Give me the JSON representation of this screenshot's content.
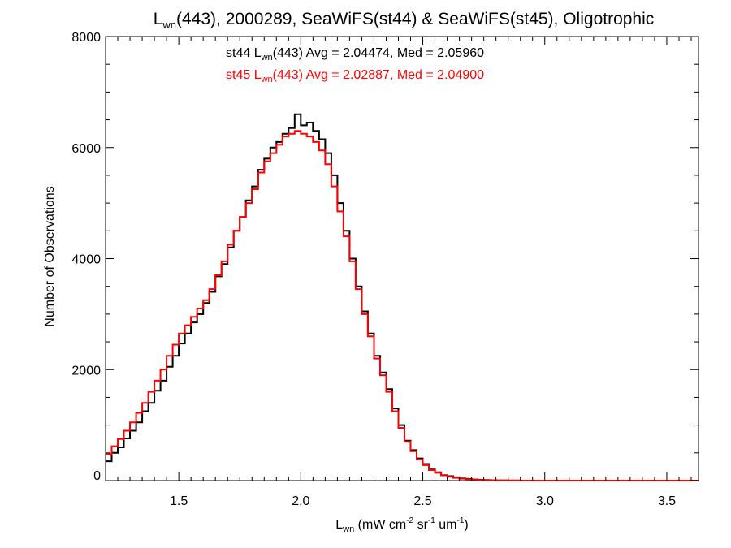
{
  "chart_data": {
    "type": "line",
    "title": {
      "main": "L",
      "sub": "wn",
      "rest": "(443), 2000289, SeaWiFS(st44) & SeaWiFS(st45), Oligotrophic"
    },
    "xlabel": {
      "main": "L",
      "sub": "wn",
      "units_pre": " (mW cm",
      "sup1": "-2",
      "units_mid": " sr",
      "sup2": "-1",
      "units_mid2": " um",
      "sup3": "-1",
      "units_post": ")"
    },
    "ylabel": "Number of Observations",
    "xlim": [
      1.2,
      3.63
    ],
    "ylim": [
      0,
      8000
    ],
    "xticks": [
      1.5,
      2.0,
      2.5,
      3.0,
      3.5
    ],
    "xtick_labels": [
      "1.5",
      "2.0",
      "2.5",
      "3.0",
      "3.5"
    ],
    "yticks": [
      0,
      2000,
      4000,
      6000,
      8000
    ],
    "ytick_labels": [
      "0",
      "2000",
      "4000",
      "6000",
      "8000"
    ],
    "grid": false,
    "annotations": [
      {
        "prefix": "st44 L",
        "sub": "wn",
        "suffix": "(443) Avg = 2.04474, Med = 2.05960",
        "color": "#000000"
      },
      {
        "prefix": "st45 L",
        "sub": "wn",
        "suffix": "(443) Avg = 2.02887, Med = 2.04900",
        "color": "#ff0000"
      }
    ],
    "series": [
      {
        "color": "#000000",
        "step": "histogram",
        "x": [
          1.2,
          1.225,
          1.25,
          1.275,
          1.3,
          1.325,
          1.35,
          1.375,
          1.4,
          1.425,
          1.45,
          1.475,
          1.5,
          1.525,
          1.55,
          1.575,
          1.6,
          1.625,
          1.65,
          1.675,
          1.7,
          1.725,
          1.75,
          1.775,
          1.8,
          1.825,
          1.85,
          1.875,
          1.9,
          1.925,
          1.95,
          1.975,
          2.0,
          2.025,
          2.05,
          2.075,
          2.1,
          2.125,
          2.15,
          2.175,
          2.2,
          2.225,
          2.25,
          2.275,
          2.3,
          2.325,
          2.35,
          2.375,
          2.4,
          2.425,
          2.45,
          2.475,
          2.5,
          2.525,
          2.55,
          2.575,
          2.6,
          2.625,
          2.65,
          2.675,
          2.7,
          2.725,
          2.75,
          2.775,
          2.8,
          2.825,
          2.85,
          2.875,
          2.9,
          2.95,
          3.0,
          3.1,
          3.2,
          3.3,
          3.4,
          3.5,
          3.63
        ],
        "y": [
          350,
          500,
          600,
          760,
          900,
          1050,
          1250,
          1400,
          1620,
          1800,
          2050,
          2250,
          2470,
          2650,
          2850,
          3000,
          3200,
          3400,
          3680,
          3900,
          4200,
          4500,
          4750,
          5050,
          5300,
          5600,
          5800,
          6000,
          6100,
          6250,
          6350,
          6600,
          6400,
          6450,
          6300,
          6150,
          5900,
          5500,
          5000,
          4500,
          4000,
          3500,
          3050,
          2650,
          2250,
          1950,
          1650,
          1300,
          1000,
          720,
          550,
          400,
          300,
          200,
          150,
          100,
          80,
          60,
          40,
          30,
          20,
          15,
          10,
          8,
          5,
          3,
          2,
          1,
          0,
          0,
          0,
          0,
          0,
          0,
          0,
          0,
          0
        ]
      },
      {
        "color": "#ff0000",
        "step": "histogram",
        "x": [
          1.2,
          1.225,
          1.25,
          1.275,
          1.3,
          1.325,
          1.35,
          1.375,
          1.4,
          1.425,
          1.45,
          1.475,
          1.5,
          1.525,
          1.55,
          1.575,
          1.6,
          1.625,
          1.65,
          1.675,
          1.7,
          1.725,
          1.75,
          1.775,
          1.8,
          1.825,
          1.85,
          1.875,
          1.9,
          1.925,
          1.95,
          1.975,
          2.0,
          2.025,
          2.05,
          2.075,
          2.1,
          2.125,
          2.15,
          2.175,
          2.2,
          2.225,
          2.25,
          2.275,
          2.3,
          2.325,
          2.35,
          2.375,
          2.4,
          2.425,
          2.45,
          2.475,
          2.5,
          2.525,
          2.55,
          2.575,
          2.6,
          2.625,
          2.65,
          2.675,
          2.7,
          2.725,
          2.75,
          2.775,
          2.8,
          2.825,
          2.85,
          2.875,
          2.9,
          2.95,
          3.0,
          3.1,
          3.2,
          3.3,
          3.4,
          3.5,
          3.63
        ],
        "y": [
          480,
          620,
          750,
          900,
          1050,
          1220,
          1400,
          1600,
          1800,
          2000,
          2250,
          2450,
          2650,
          2800,
          2950,
          3100,
          3250,
          3450,
          3700,
          3950,
          4250,
          4500,
          4750,
          5000,
          5250,
          5550,
          5750,
          5900,
          6050,
          6200,
          6250,
          6300,
          6250,
          6200,
          6100,
          5950,
          5700,
          5300,
          4850,
          4400,
          3950,
          3450,
          3000,
          2600,
          2200,
          1900,
          1600,
          1250,
          950,
          700,
          530,
          380,
          280,
          190,
          140,
          95,
          70,
          50,
          35,
          25,
          18,
          12,
          8,
          6,
          4,
          3,
          2,
          1,
          0,
          0,
          0,
          0,
          0,
          0,
          0,
          0,
          0
        ]
      }
    ]
  }
}
